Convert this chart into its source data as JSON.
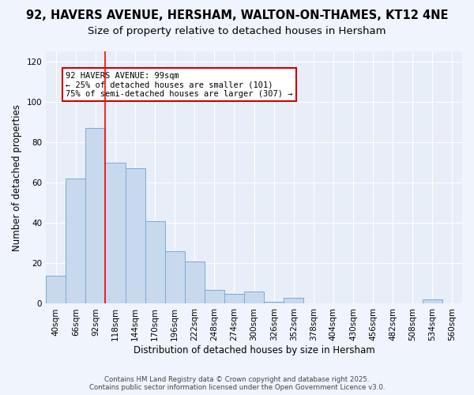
{
  "title1": "92, HAVERS AVENUE, HERSHAM, WALTON-ON-THAMES, KT12 4NE",
  "title2": "Size of property relative to detached houses in Hersham",
  "xlabel": "Distribution of detached houses by size in Hersham",
  "ylabel": "Number of detached properties",
  "categories": [
    "40sqm",
    "66sqm",
    "92sqm",
    "118sqm",
    "144sqm",
    "170sqm",
    "196sqm",
    "222sqm",
    "248sqm",
    "274sqm",
    "300sqm",
    "326sqm",
    "352sqm",
    "378sqm",
    "404sqm",
    "430sqm",
    "456sqm",
    "482sqm",
    "508sqm",
    "534sqm",
    "560sqm"
  ],
  "heights": [
    14,
    62,
    87,
    70,
    67,
    41,
    26,
    21,
    7,
    5,
    6,
    1,
    3,
    0,
    0,
    0,
    0,
    0,
    0,
    2,
    0
  ],
  "bar_color": "#c8d9ee",
  "bar_edge_color": "#7aaad4",
  "bg_color": "#e8eef8",
  "fig_bg_color": "#f0f4fc",
  "grid_color": "#ffffff",
  "red_line_index": 2.5,
  "annotation_text": "92 HAVERS AVENUE: 99sqm\n← 25% of detached houses are smaller (101)\n75% of semi-detached houses are larger (307) →",
  "annotation_box_color": "#ffffff",
  "annotation_box_edge": "#cc0000",
  "ylim": [
    0,
    125
  ],
  "yticks": [
    0,
    20,
    40,
    60,
    80,
    100,
    120
  ],
  "footer": "Contains HM Land Registry data © Crown copyright and database right 2025.\nContains public sector information licensed under the Open Government Licence v3.0.",
  "title1_fontsize": 10.5,
  "title2_fontsize": 9.5,
  "xlabel_fontsize": 8.5,
  "ylabel_fontsize": 8.5,
  "tick_fontsize": 7.5,
  "annot_fontsize": 7.5
}
